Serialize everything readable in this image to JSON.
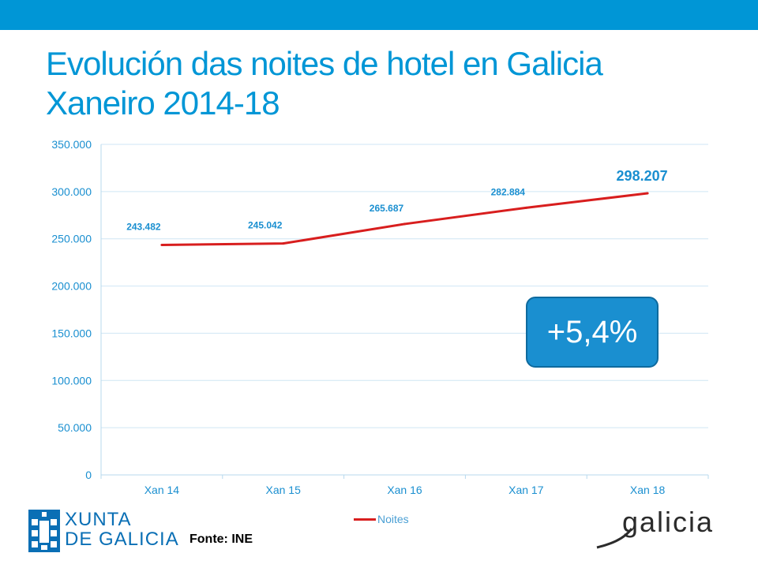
{
  "slide": {
    "title_line1": "Evolución das noites de hotel en Galicia",
    "title_line2": "Xaneiro 2014-18",
    "badge": "+5,4%",
    "source": "Fonte: INE",
    "brand_color": "#0096d6",
    "logo_left_lines": [
      "XUNTA",
      "DE GALICIA"
    ],
    "logo_right": "galicia"
  },
  "chart_data": {
    "type": "line",
    "categories": [
      "Xan 14",
      "Xan 15",
      "Xan 16",
      "Xan 17",
      "Xan 18"
    ],
    "series": [
      {
        "name": "Noites",
        "values": [
          243482,
          245042,
          265687,
          282884,
          298207
        ],
        "labels": [
          "243.482",
          "245.042",
          "265.687",
          "282.884",
          "298.207"
        ],
        "color": "#d81e1e"
      }
    ],
    "ylim": [
      0,
      350000
    ],
    "yticks": [
      0,
      50000,
      100000,
      150000,
      200000,
      250000,
      300000,
      350000
    ],
    "ytick_labels": [
      "0",
      "50.000",
      "100.000",
      "150.000",
      "200.000",
      "250.000",
      "300.000",
      "350.000"
    ],
    "grid": true,
    "legend_position": "bottom",
    "label_color": "#1a8fd0"
  }
}
